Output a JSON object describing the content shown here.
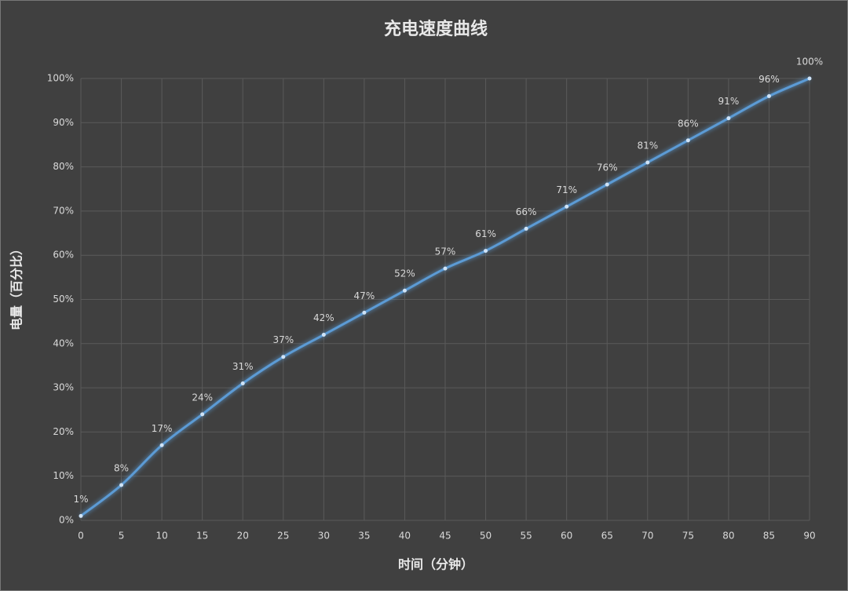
{
  "chart_data": {
    "type": "line",
    "title": "充电速度曲线",
    "x_label": "时间（分钟）",
    "y_label": "电量（百分比）",
    "x": [
      0,
      5,
      10,
      15,
      20,
      25,
      30,
      35,
      40,
      45,
      50,
      55,
      60,
      65,
      70,
      75,
      80,
      85,
      90
    ],
    "values": [
      1,
      8,
      17,
      24,
      31,
      37,
      42,
      47,
      52,
      57,
      61,
      66,
      71,
      76,
      81,
      86,
      91,
      96,
      100
    ],
    "value_labels": [
      "1%",
      "8%",
      "17%",
      "24%",
      "31%",
      "37%",
      "42%",
      "47%",
      "52%",
      "57%",
      "61%",
      "66%",
      "71%",
      "76%",
      "81%",
      "86%",
      "91%",
      "96%",
      "100%"
    ],
    "color": "#5b9bd5",
    "xlim": [
      0,
      90
    ],
    "xticks": [
      0,
      5,
      10,
      15,
      20,
      25,
      30,
      35,
      40,
      45,
      50,
      55,
      60,
      65,
      70,
      75,
      80,
      85,
      90
    ],
    "ylim": [
      0,
      100
    ],
    "yticks": [
      {
        "value": 0,
        "label": "0%"
      },
      {
        "value": 10,
        "label": "10%"
      },
      {
        "value": 20,
        "label": "20%"
      },
      {
        "value": 30,
        "label": "30%"
      },
      {
        "value": 40,
        "label": "40%"
      },
      {
        "value": 50,
        "label": "50%"
      },
      {
        "value": 60,
        "label": "60%"
      },
      {
        "value": 70,
        "label": "70%"
      },
      {
        "value": 80,
        "label": "80%"
      },
      {
        "value": 90,
        "label": "90%"
      },
      {
        "value": 100,
        "label": "100%"
      }
    ],
    "grid": true,
    "smooth": true
  }
}
